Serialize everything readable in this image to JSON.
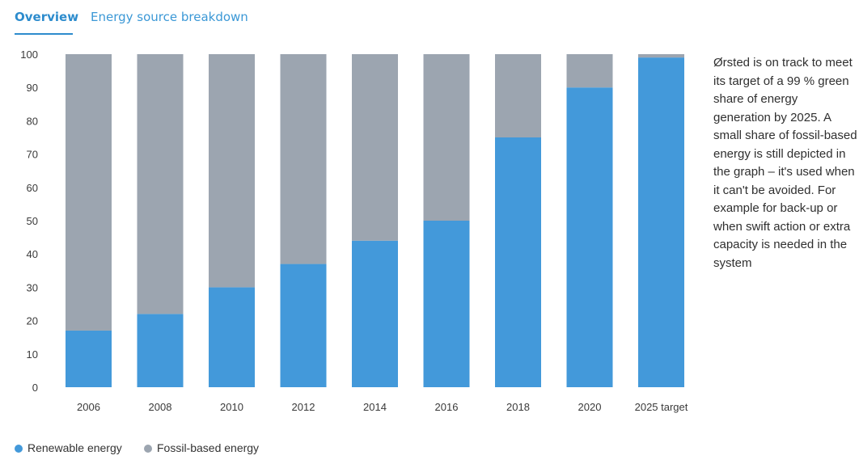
{
  "tabs": {
    "overview": "Overview",
    "breakdown": "Energy source breakdown"
  },
  "description": "Ørsted is on track to meet its target of a 99 % green share of energy generation by 2025. A small share of fossil-based energy is still depicted in the graph – it's used when it can't be avoided. For example for back-up or when swift action or extra capacity is needed in the system",
  "colors": {
    "renewable": "#4399da",
    "fossil": "#9ca5b0",
    "accent": "#2d8ccd"
  },
  "legend": {
    "renewable": "Renewable energy",
    "fossil": "Fossil-based energy"
  },
  "chart_data": {
    "type": "bar",
    "stacked": true,
    "categories": [
      "2006",
      "2008",
      "2010",
      "2012",
      "2014",
      "2016",
      "2018",
      "2020",
      "2025 target"
    ],
    "series": [
      {
        "name": "Renewable energy",
        "values": [
          17,
          22,
          30,
          37,
          44,
          50,
          75,
          90,
          99
        ]
      },
      {
        "name": "Fossil-based energy",
        "values": [
          83,
          78,
          70,
          63,
          56,
          50,
          25,
          10,
          1
        ]
      }
    ],
    "yticks": [
      0,
      10,
      20,
      30,
      40,
      50,
      60,
      70,
      80,
      90,
      100
    ],
    "ylim": [
      0,
      100
    ],
    "grid": false,
    "legend_position": "bottom-left"
  }
}
